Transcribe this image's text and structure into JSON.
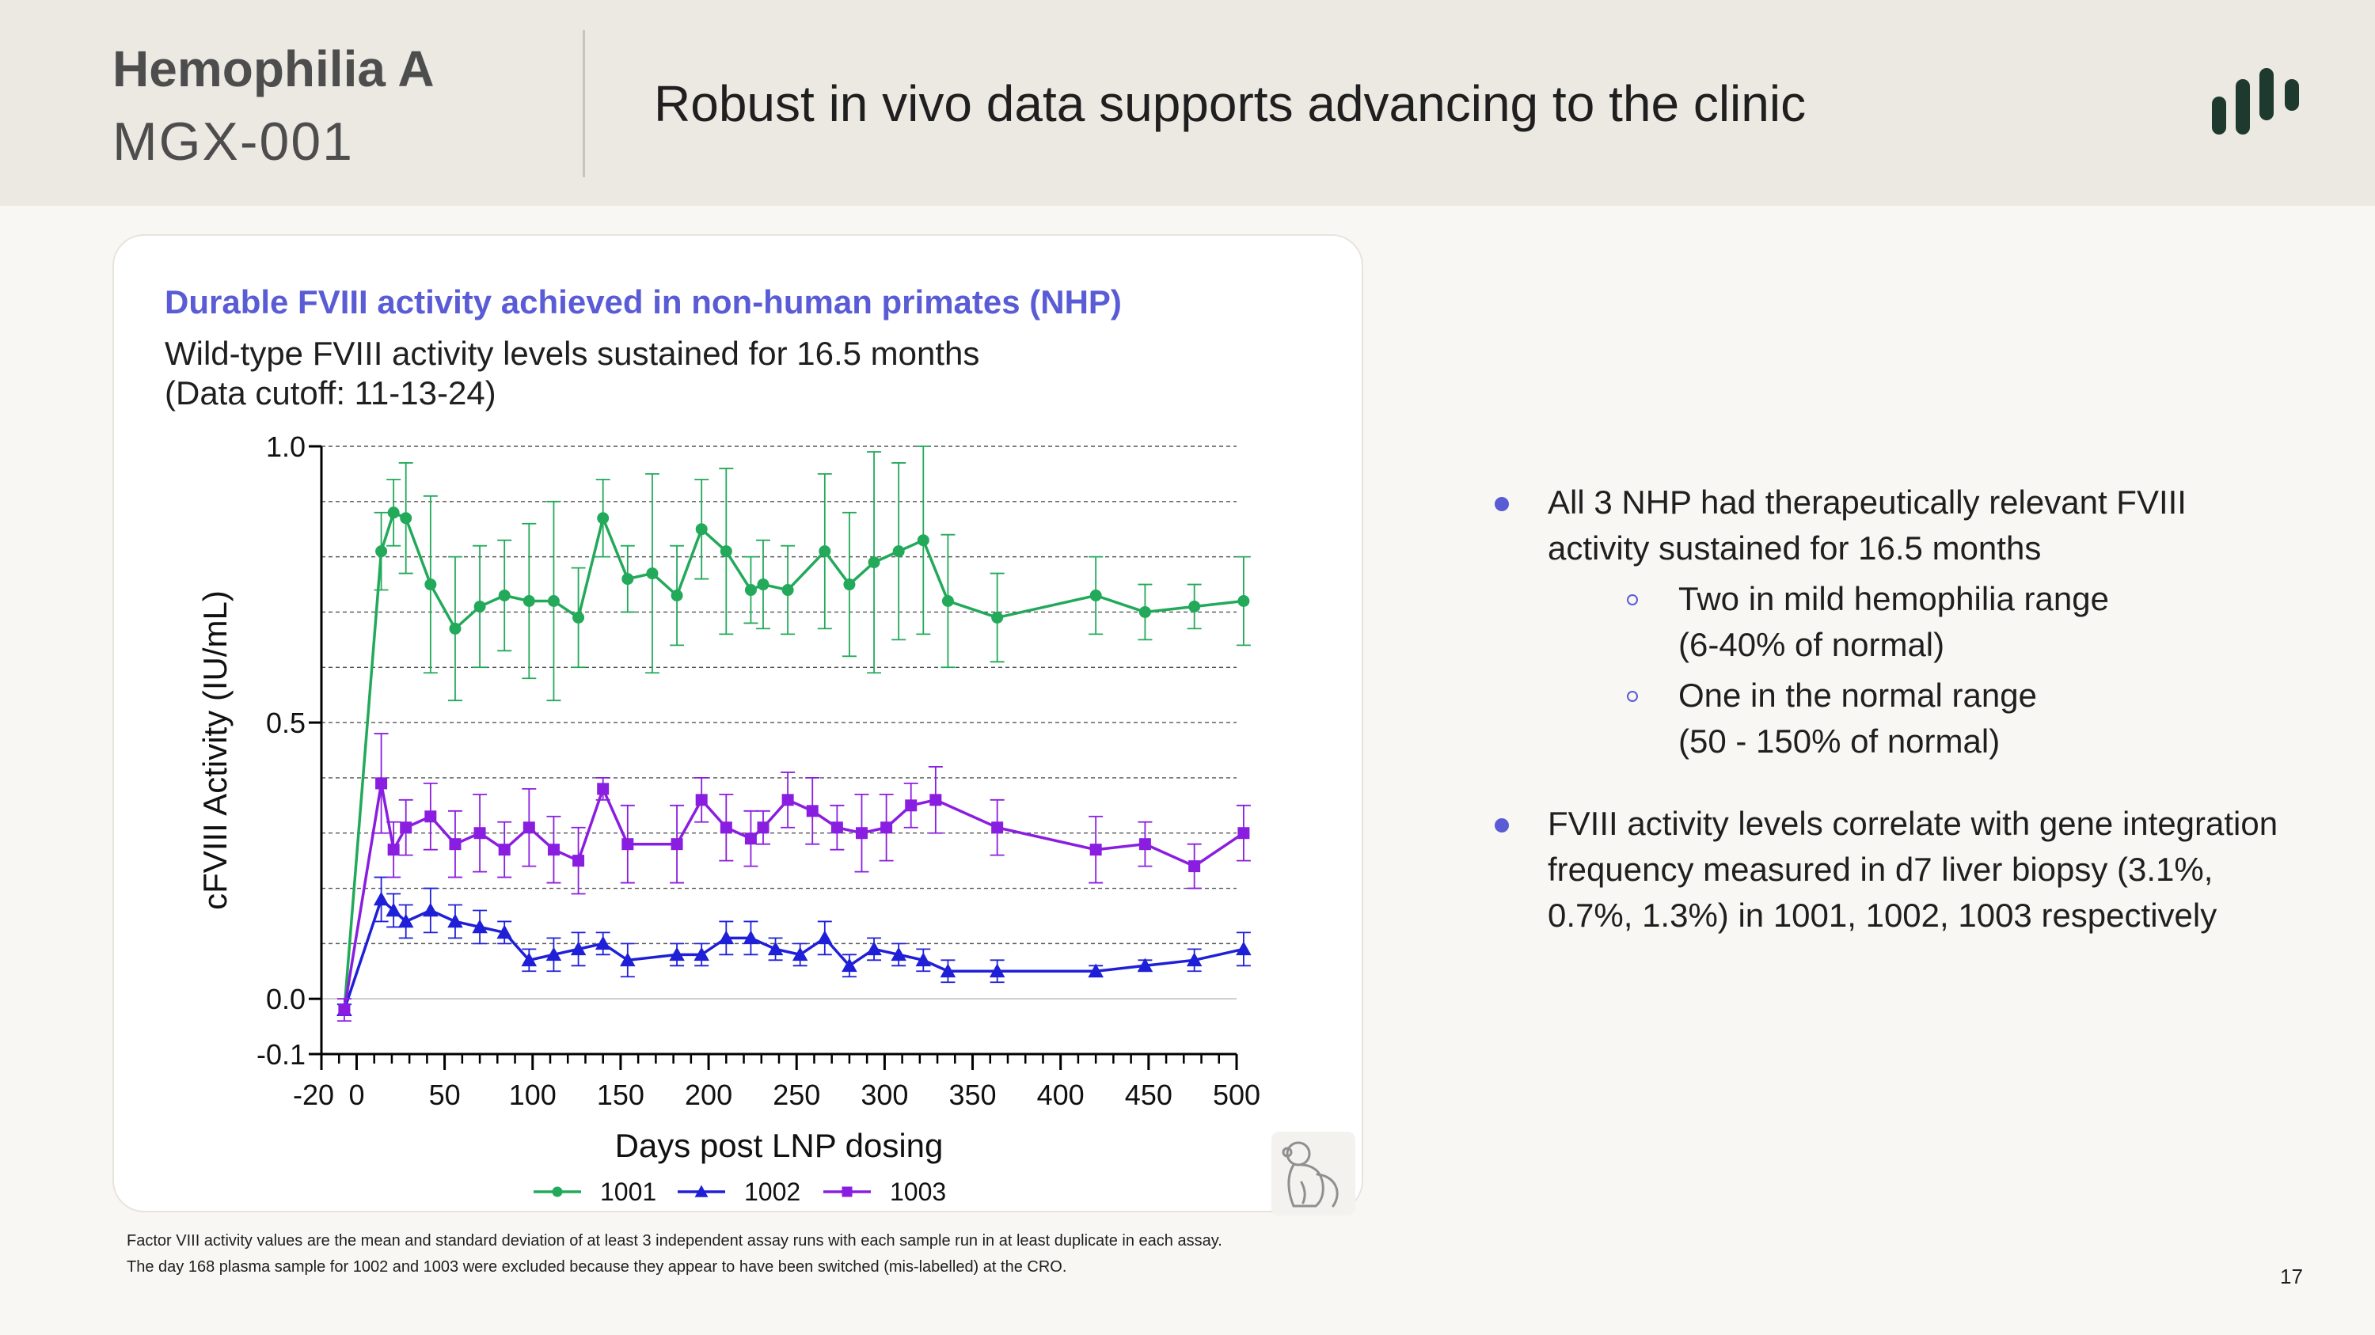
{
  "header": {
    "product": "Hemophilia A",
    "code": "MGX-001",
    "title": "Robust in vivo data supports advancing to the clinic"
  },
  "card": {
    "title": "Durable FVIII activity achieved in non-human primates (NHP)",
    "subtitle_line1": "Wild-type FVIII activity levels sustained for 16.5 months",
    "subtitle_line2": "(Data cutoff: 11-13-24)"
  },
  "chart_data": {
    "type": "line",
    "title": "Durable FVIII activity achieved in non-human primates (NHP)",
    "xlabel": "Days post LNP dosing",
    "ylabel": "cFVIII Activity (IU/mL)",
    "xlim": [
      -20,
      500
    ],
    "ylim": [
      -0.1,
      1.0
    ],
    "xticks": [
      -20,
      0,
      50,
      100,
      150,
      200,
      250,
      300,
      350,
      400,
      450,
      500
    ],
    "xtick_labels": [
      "-20",
      "0",
      "50",
      "100",
      "150",
      "200",
      "250",
      "300",
      "350",
      "400",
      "450",
      "500"
    ],
    "yticks": [
      -0.1,
      0.0,
      0.5,
      1.0
    ],
    "ytick_labels": [
      "-0.1",
      "0.0",
      "0.5",
      "1.0"
    ],
    "gridlines_y": [
      0.1,
      0.2,
      0.3,
      0.4,
      0.5,
      0.6,
      0.7,
      0.8,
      0.9,
      1.0
    ],
    "legend_position": "bottom",
    "series": [
      {
        "name": "1001",
        "color": "#22a95a",
        "marker": "circle",
        "x": [
          -7,
          14,
          21,
          28,
          42,
          56,
          70,
          84,
          98,
          112,
          126,
          140,
          154,
          168,
          182,
          196,
          210,
          224,
          231,
          245,
          266,
          280,
          294,
          308,
          322,
          336,
          364,
          420,
          448,
          476,
          504
        ],
        "y": [
          -0.02,
          0.81,
          0.88,
          0.87,
          0.75,
          0.67,
          0.71,
          0.73,
          0.72,
          0.72,
          0.69,
          0.87,
          0.76,
          0.77,
          0.73,
          0.85,
          0.81,
          0.74,
          0.75,
          0.74,
          0.81,
          0.75,
          0.79,
          0.81,
          0.83,
          0.72,
          0.69,
          0.73,
          0.7,
          0.71,
          0.72
        ],
        "err": [
          0.01,
          0.07,
          0.06,
          0.1,
          0.16,
          0.13,
          0.11,
          0.1,
          0.14,
          0.18,
          0.09,
          0.07,
          0.06,
          0.18,
          0.09,
          0.09,
          0.15,
          0.06,
          0.08,
          0.08,
          0.14,
          0.13,
          0.2,
          0.16,
          0.17,
          0.12,
          0.08,
          0.07,
          0.05,
          0.04,
          0.08
        ]
      },
      {
        "name": "1002",
        "color": "#1f1fd8",
        "marker": "triangle",
        "x": [
          -7,
          14,
          21,
          28,
          42,
          56,
          70,
          84,
          98,
          112,
          126,
          140,
          154,
          182,
          196,
          210,
          224,
          238,
          252,
          266,
          280,
          294,
          308,
          322,
          336,
          364,
          420,
          448,
          476,
          504
        ],
        "y": [
          -0.02,
          0.18,
          0.16,
          0.14,
          0.16,
          0.14,
          0.13,
          0.12,
          0.07,
          0.08,
          0.09,
          0.1,
          0.07,
          0.08,
          0.08,
          0.11,
          0.11,
          0.09,
          0.08,
          0.11,
          0.06,
          0.09,
          0.08,
          0.07,
          0.05,
          0.05,
          0.05,
          0.06,
          0.07,
          0.09
        ],
        "err": [
          0.01,
          0.04,
          0.03,
          0.03,
          0.04,
          0.03,
          0.03,
          0.02,
          0.02,
          0.03,
          0.03,
          0.02,
          0.03,
          0.02,
          0.02,
          0.03,
          0.03,
          0.02,
          0.02,
          0.03,
          0.02,
          0.02,
          0.02,
          0.02,
          0.02,
          0.02,
          0.01,
          0.01,
          0.02,
          0.03
        ]
      },
      {
        "name": "1003",
        "color": "#8a1ee0",
        "marker": "square",
        "x": [
          -7,
          14,
          21,
          28,
          42,
          56,
          70,
          84,
          98,
          112,
          126,
          140,
          154,
          182,
          196,
          210,
          224,
          231,
          245,
          259,
          273,
          287,
          301,
          315,
          329,
          364,
          420,
          448,
          476,
          504
        ],
        "y": [
          -0.02,
          0.39,
          0.27,
          0.31,
          0.33,
          0.28,
          0.3,
          0.27,
          0.31,
          0.27,
          0.25,
          0.38,
          0.28,
          0.28,
          0.36,
          0.31,
          0.29,
          0.31,
          0.36,
          0.34,
          0.31,
          0.3,
          0.31,
          0.35,
          0.36,
          0.31,
          0.27,
          0.28,
          0.24,
          0.3
        ],
        "err": [
          0.02,
          0.09,
          0.05,
          0.05,
          0.06,
          0.06,
          0.07,
          0.05,
          0.07,
          0.06,
          0.06,
          0.02,
          0.07,
          0.07,
          0.04,
          0.06,
          0.05,
          0.03,
          0.05,
          0.06,
          0.04,
          0.07,
          0.06,
          0.04,
          0.06,
          0.05,
          0.06,
          0.04,
          0.04,
          0.05
        ]
      }
    ]
  },
  "bullets": [
    {
      "text": "All 3 NHP had therapeutically relevant FVIII activity sustained for 16.5 months",
      "sub": [
        {
          "line1": "Two in mild hemophilia range",
          "line2": "(6-40% of normal)"
        },
        {
          "line1": "One in the normal range",
          "line2": "(50 - 150% of normal)"
        }
      ]
    },
    {
      "text": "FVIII activity levels correlate with gene integration frequency measured in d7 liver biopsy (3.1%, 0.7%, 1.3%) in 1001, 1002, 1003 respectively"
    }
  ],
  "footnote": {
    "line1": "Factor VIII activity values are the mean and standard deviation of at least 3 independent assay runs with each sample run in at least duplicate in each assay.",
    "line2": "The day 168 plasma sample for 1002 and 1003 were excluded because they appear to have been switched (mis-labelled) at the CRO."
  },
  "page_number": "17",
  "colors": {
    "accent": "#5a5cd6",
    "logo": "#1e3a2e"
  }
}
